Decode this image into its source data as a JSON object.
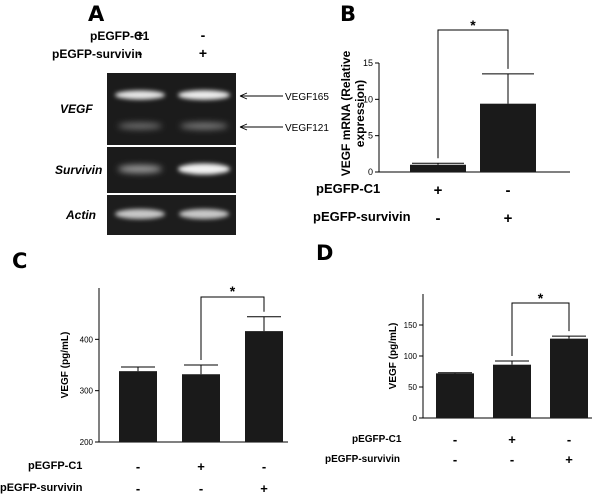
{
  "panels": {
    "A": {
      "label": "A",
      "rows": [
        {
          "name": "pEGFP-C1",
          "signs": [
            "+",
            "-"
          ]
        },
        {
          "name": "pEGFP-survivin",
          "signs": [
            "-",
            "+"
          ]
        }
      ],
      "gels": [
        {
          "name": "VEGF"
        },
        {
          "name": "Survivin"
        },
        {
          "name": "Actin"
        }
      ],
      "band_labels": [
        "VEGF165",
        "VEGF121"
      ]
    },
    "B": {
      "label": "B"
    },
    "C": {
      "label": "C"
    },
    "D": {
      "label": "D"
    }
  },
  "chart_data": [
    {
      "panel": "B",
      "type": "bar",
      "ylabel": "VEGF mRNA (Relative expression)",
      "ylabel_lines": [
        "VEGF mRNA (Relative",
        "expression)"
      ],
      "ylim": [
        0,
        15
      ],
      "yticks": [
        "0",
        "5",
        "10",
        "15"
      ],
      "values": [
        1.0,
        9.4
      ],
      "errors": [
        0.2,
        4.1
      ],
      "conditions": [
        {
          "name": "pEGFP-C1",
          "signs": [
            "+",
            "-"
          ]
        },
        {
          "name": "pEGFP-survivin",
          "signs": [
            "-",
            "+"
          ]
        }
      ],
      "significance": {
        "between": [
          0,
          1
        ],
        "label": "*"
      }
    },
    {
      "panel": "C",
      "type": "bar",
      "ylabel": "VEGF (pg/mL)",
      "ylim": [
        200,
        500
      ],
      "yticks": [
        "200",
        "300",
        "400"
      ],
      "values": [
        338,
        332,
        416
      ],
      "errors": [
        8,
        18,
        28
      ],
      "conditions": [
        {
          "name": "pEGFP-C1",
          "signs": [
            "-",
            "+",
            "-"
          ]
        },
        {
          "name": "pEGFP-survivin",
          "signs": [
            "-",
            "-",
            "+"
          ]
        }
      ],
      "significance": {
        "between": [
          1,
          2
        ],
        "label": "*"
      }
    },
    {
      "panel": "D",
      "type": "bar",
      "ylabel": "VEGF (pg/mL)",
      "ylim": [
        0,
        200
      ],
      "yticks": [
        "0",
        "50",
        "100",
        "150"
      ],
      "values": [
        72,
        86,
        128
      ],
      "errors": [
        1,
        6,
        4
      ],
      "conditions": [
        {
          "name": "pEGFP-C1",
          "signs": [
            "-",
            "+",
            "-"
          ]
        },
        {
          "name": "pEGFP-survivin",
          "signs": [
            "-",
            "-",
            "+"
          ]
        }
      ],
      "significance": {
        "between": [
          1,
          2
        ],
        "label": "*"
      }
    }
  ]
}
